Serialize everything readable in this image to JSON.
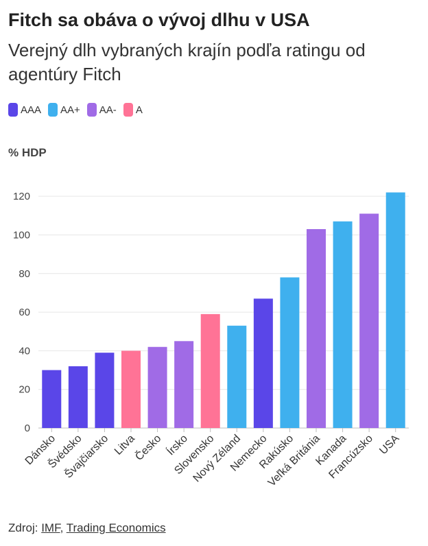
{
  "header": {
    "title": "Fitch sa obáva o vývoj dlhu v USA",
    "subtitle": "Verejný dlh vybraných krajín podľa ratingu od agentúry Fitch"
  },
  "legend": [
    {
      "label": "AAA",
      "color": "#5a46e8"
    },
    {
      "label": "AA+",
      "color": "#3fb0ee"
    },
    {
      "label": "AA-",
      "color": "#a06be6"
    },
    {
      "label": "A",
      "color": "#ff7396"
    }
  ],
  "source": {
    "prefix": "Zdroj: ",
    "links": [
      "IMF",
      "Trading Economics"
    ],
    "separator": ", "
  },
  "chart_data": {
    "type": "bar",
    "ylabel": "% HDP",
    "ylim": [
      0,
      130
    ],
    "yticks": [
      0,
      20,
      40,
      60,
      80,
      100,
      120
    ],
    "grid": true,
    "legend_position": "top-left",
    "categories": [
      "Dánsko",
      "Švédsko",
      "Švajčiarsko",
      "Litva",
      "Česko",
      "Írsko",
      "Slovensko",
      "Nový Zéland",
      "Nemecko",
      "Rakúsko",
      "Veľká Británia",
      "Kanada",
      "Francúzsko",
      "USA"
    ],
    "values": [
      30,
      32,
      39,
      40,
      42,
      45,
      59,
      53,
      67,
      78,
      103,
      107,
      111,
      122
    ],
    "ratings": [
      "AAA",
      "AAA",
      "AAA",
      "A",
      "AA-",
      "AA-",
      "A",
      "AA+",
      "AAA",
      "AA+",
      "AA-",
      "AA+",
      "AA-",
      "AA+"
    ]
  }
}
